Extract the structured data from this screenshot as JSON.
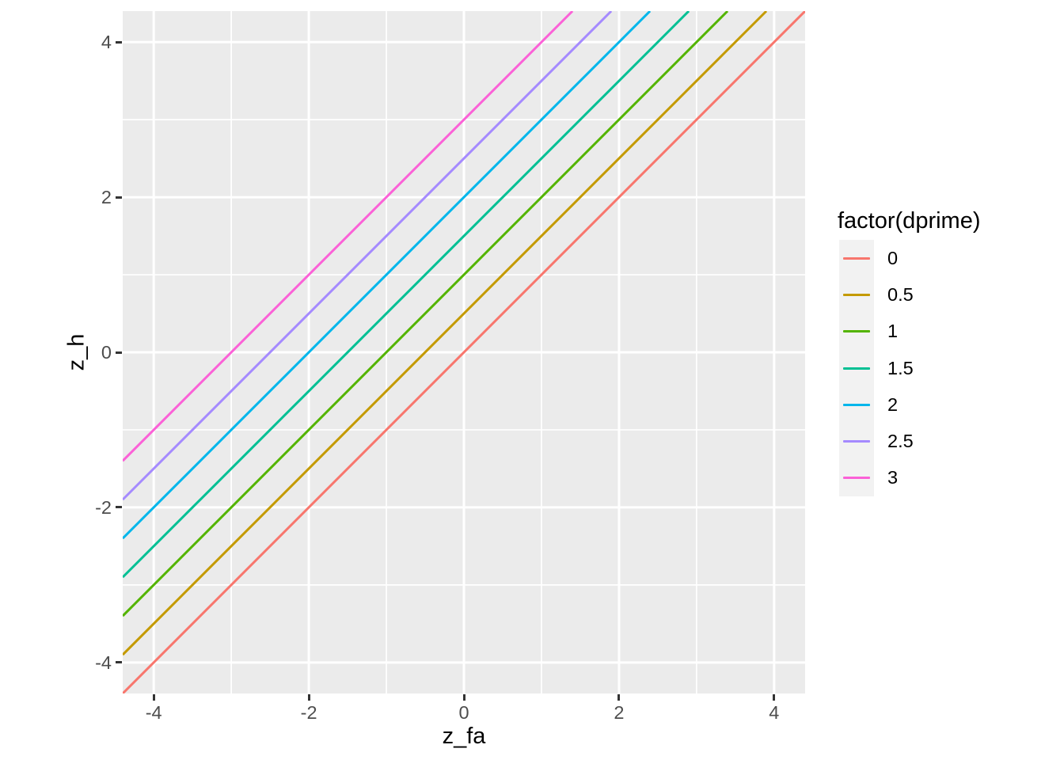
{
  "chart_data": {
    "type": "line",
    "title": "",
    "xlabel": "z_fa",
    "ylabel": "z_h",
    "xlim": [
      -4.4,
      4.4
    ],
    "ylim": [
      -4.4,
      4.4
    ],
    "x_ticks": [
      -4,
      -2,
      0,
      2,
      4
    ],
    "x_tick_labels": [
      "-4",
      "-2",
      "0",
      "2",
      "4"
    ],
    "y_ticks": [
      -4,
      -2,
      0,
      2,
      4
    ],
    "y_tick_labels": [
      "-4",
      "-2",
      "0",
      "2",
      "4"
    ],
    "x_minor_ticks": [
      -3,
      -1,
      1,
      3
    ],
    "y_minor_ticks": [
      -3,
      -1,
      1,
      3
    ],
    "grid": true,
    "panel_background": "#EBEBEB",
    "grid_color": "#FFFFFF",
    "tick_mark_color": "#333333",
    "tick_label_color": "#4D4D4D",
    "legend": {
      "title": "factor(dprime)",
      "position": "right",
      "key_background": "#F2F2F2",
      "entries": [
        {
          "label": "0",
          "color": "#F8766D"
        },
        {
          "label": "0.5",
          "color": "#C49A00"
        },
        {
          "label": "1",
          "color": "#53B400"
        },
        {
          "label": "1.5",
          "color": "#00C094"
        },
        {
          "label": "2",
          "color": "#00B6EB"
        },
        {
          "label": "2.5",
          "color": "#A58AFF"
        },
        {
          "label": "3",
          "color": "#FB61D7"
        }
      ]
    },
    "series": [
      {
        "name": "0",
        "dprime": 0,
        "color": "#F8766D",
        "slope": 1,
        "intercept": 0,
        "x1": -4.4,
        "y1": -4.4,
        "x2": 4.4,
        "y2": 4.4
      },
      {
        "name": "0.5",
        "dprime": 0.5,
        "color": "#C49A00",
        "slope": 1,
        "intercept": 0.5,
        "x1": -4.4,
        "y1": -3.9,
        "x2": 3.9,
        "y2": 4.4
      },
      {
        "name": "1",
        "dprime": 1,
        "color": "#53B400",
        "slope": 1,
        "intercept": 1,
        "x1": -4.4,
        "y1": -3.4,
        "x2": 3.4,
        "y2": 4.4
      },
      {
        "name": "1.5",
        "dprime": 1.5,
        "color": "#00C094",
        "slope": 1,
        "intercept": 1.5,
        "x1": -4.4,
        "y1": -2.9,
        "x2": 2.9,
        "y2": 4.4
      },
      {
        "name": "2",
        "dprime": 2,
        "color": "#00B6EB",
        "slope": 1,
        "intercept": 2,
        "x1": -4.4,
        "y1": -2.4,
        "x2": 2.4,
        "y2": 4.4
      },
      {
        "name": "2.5",
        "dprime": 2.5,
        "color": "#A58AFF",
        "slope": 1,
        "intercept": 2.5,
        "x1": -4.4,
        "y1": -1.9,
        "x2": 1.9,
        "y2": 4.4
      },
      {
        "name": "3",
        "dprime": 3,
        "color": "#FB61D7",
        "slope": 1,
        "intercept": 3,
        "x1": -4.4,
        "y1": -1.4,
        "x2": 1.4,
        "y2": 4.4
      }
    ]
  }
}
